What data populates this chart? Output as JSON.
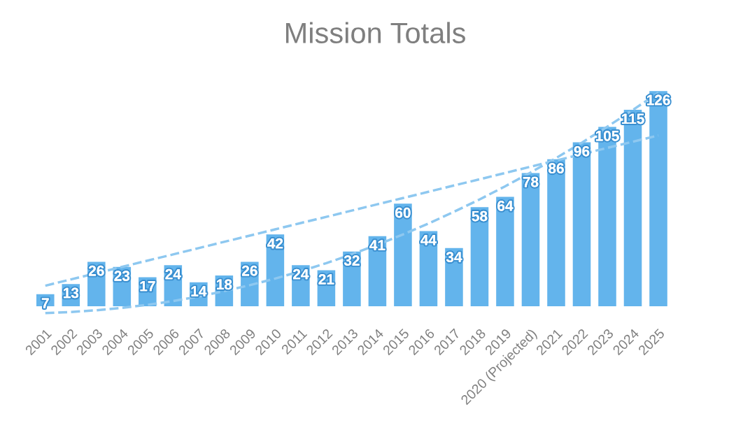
{
  "chart_data": {
    "type": "bar",
    "title": "Mission Totals",
    "categories": [
      "2001",
      "2002",
      "2003",
      "2004",
      "2005",
      "2006",
      "2007",
      "2008",
      "2009",
      "2010",
      "2011",
      "2012",
      "2013",
      "2014",
      "2015",
      "2016",
      "2017",
      "2018",
      "2019",
      "2020 (Projected)",
      "2021",
      "2022",
      "2023",
      "2024",
      "2025"
    ],
    "series": [
      {
        "color": "#63b4ec",
        "values": [
          7,
          13,
          26,
          23,
          17,
          24,
          14,
          18,
          26,
          42,
          24,
          21,
          32,
          41,
          60,
          44,
          34,
          58,
          64,
          78,
          86,
          96,
          105,
          115,
          126
        ],
        "value_labels": [
          "7",
          "13",
          "26",
          "23",
          "17",
          "24",
          "14",
          "18",
          "26",
          "42",
          "24",
          "21",
          "32",
          "41",
          "60",
          "44",
          "34",
          "58",
          "64",
          "78",
          "86",
          "96",
          "105",
          "115",
          "126"
        ]
      },
      {
        "type": "line",
        "color": "#8ec8f0",
        "line_style": "dashed",
        "values": [
          12,
          15.7,
          19.3,
          23,
          26.7,
          30.3,
          34,
          37.7,
          41.3,
          45,
          48.7,
          52.3,
          56,
          59.7,
          63.3,
          67,
          70.7,
          74.3,
          78,
          81.7,
          85.3,
          89,
          92.7,
          96.3,
          100
        ]
      },
      {
        "type": "line",
        "color": "#8ec8f0",
        "line_style": "dashed",
        "values": [
          -4,
          -3.4,
          -2.4,
          -1,
          0.8,
          3,
          5.7,
          8.8,
          12.3,
          16.2,
          20.5,
          25.2,
          30.4,
          36,
          42,
          48.4,
          55.3,
          62.5,
          70.2,
          78.3,
          86.8,
          95.7,
          105.1,
          114.9,
          125
        ]
      }
    ],
    "tick_labels": "x",
    "grid": false
  }
}
